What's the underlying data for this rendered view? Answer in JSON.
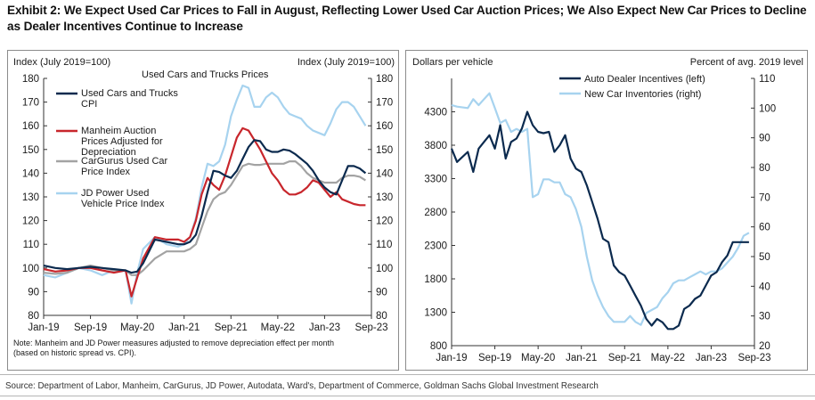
{
  "title": "Exhibit 2: We Expect Used Car Prices to Fall in August, Reflecting Lower Used Car Auction Prices; We Also Expect New Car Prices to Decline as Dealer Incentives Continue to Increase",
  "source": "Source: Department of Labor, Manheim, CarGurus, JD Power, Autodata, Ward's, Department of Commerce, Goldman Sachs Global Investment Research",
  "colors": {
    "navy": "#0b2a4e",
    "red": "#c8262c",
    "gray": "#a3a3a3",
    "lightblue": "#a7d3ef"
  },
  "chart_data": [
    {
      "type": "line",
      "title": "Used Cars and Trucks Prices",
      "ylabel_left": "Index (July 2019=100)",
      "ylabel_right": "Index (July 2019=100)",
      "x_tick_labels": [
        "Jan-19",
        "Sep-19",
        "May-20",
        "Jan-21",
        "Sep-21",
        "May-22",
        "Jan-23",
        "Sep-23"
      ],
      "xlim": [
        "2019-01",
        "2023-09"
      ],
      "ylim": [
        80,
        180
      ],
      "yticks": [
        80,
        90,
        100,
        110,
        120,
        130,
        140,
        150,
        160,
        170,
        180
      ],
      "note": [
        "Note: Manheim and JD Power measures adjusted to remove depreciation effect per month",
        "(based on historic spread vs. CPI)."
      ],
      "series": [
        {
          "name": "Used Cars and Trucks CPI",
          "legend": [
            "Used Cars and Trucks",
            "CPI"
          ],
          "color": "#0b2a4e",
          "x": [
            "2019-01",
            "2019-03",
            "2019-05",
            "2019-07",
            "2019-09",
            "2019-11",
            "2020-01",
            "2020-03",
            "2020-04",
            "2020-05",
            "2020-06",
            "2020-08",
            "2020-10",
            "2020-12",
            "2021-01",
            "2021-02",
            "2021-03",
            "2021-04",
            "2021-05",
            "2021-06",
            "2021-07",
            "2021-08",
            "2021-09",
            "2021-10",
            "2021-11",
            "2021-12",
            "2022-01",
            "2022-02",
            "2022-03",
            "2022-04",
            "2022-05",
            "2022-06",
            "2022-07",
            "2022-08",
            "2022-09",
            "2022-10",
            "2022-11",
            "2022-12",
            "2023-01",
            "2023-02",
            "2023-03",
            "2023-04",
            "2023-05",
            "2023-06",
            "2023-07",
            "2023-08"
          ],
          "y": [
            101,
            100,
            99.5,
            100,
            100.5,
            100,
            99.5,
            99,
            98,
            98.5,
            102,
            112,
            111,
            110,
            110,
            111,
            114,
            122,
            132,
            141,
            140.5,
            139,
            138,
            141,
            146,
            151,
            154,
            153.5,
            150,
            149,
            149,
            150,
            149.5,
            148,
            146,
            144,
            141,
            137,
            134,
            132,
            131,
            137,
            143,
            143,
            142,
            140
          ]
        },
        {
          "name": "Manheim Auction Prices Adjusted for Depreciation",
          "legend": [
            "Manheim Auction",
            "Prices Adjusted for",
            "Depreciation"
          ],
          "color": "#c8262c",
          "x": [
            "2019-01",
            "2019-03",
            "2019-05",
            "2019-07",
            "2019-09",
            "2019-11",
            "2020-01",
            "2020-03",
            "2020-04",
            "2020-05",
            "2020-06",
            "2020-08",
            "2020-10",
            "2020-12",
            "2021-01",
            "2021-02",
            "2021-03",
            "2021-04",
            "2021-05",
            "2021-06",
            "2021-07",
            "2021-08",
            "2021-09",
            "2021-10",
            "2021-11",
            "2021-12",
            "2022-01",
            "2022-02",
            "2022-03",
            "2022-04",
            "2022-05",
            "2022-06",
            "2022-07",
            "2022-08",
            "2022-09",
            "2022-10",
            "2022-11",
            "2022-12",
            "2023-01",
            "2023-02",
            "2023-03",
            "2023-04",
            "2023-05",
            "2023-06",
            "2023-07",
            "2023-08"
          ],
          "y": [
            99.5,
            98.5,
            99,
            100,
            100,
            99,
            98,
            99,
            88,
            96,
            104,
            113,
            112,
            112,
            111,
            113,
            120,
            131,
            138,
            135,
            133,
            139,
            147,
            155,
            159,
            158,
            154,
            150,
            145,
            140,
            137,
            133,
            131,
            131,
            132,
            134,
            137,
            136,
            133,
            130,
            132,
            129,
            128,
            127,
            126.5,
            126.5
          ]
        },
        {
          "name": "CarGurus Used Car Price Index",
          "legend": [
            "CarGurus Used Car",
            "Price Index"
          ],
          "color": "#a3a3a3",
          "x": [
            "2019-01",
            "2019-03",
            "2019-05",
            "2019-07",
            "2019-09",
            "2019-11",
            "2020-01",
            "2020-03",
            "2020-04",
            "2020-05",
            "2020-06",
            "2020-08",
            "2020-10",
            "2020-12",
            "2021-01",
            "2021-02",
            "2021-03",
            "2021-04",
            "2021-05",
            "2021-06",
            "2021-07",
            "2021-08",
            "2021-09",
            "2021-10",
            "2021-11",
            "2021-12",
            "2022-01",
            "2022-02",
            "2022-03",
            "2022-04",
            "2022-05",
            "2022-06",
            "2022-07",
            "2022-08",
            "2022-09",
            "2022-10",
            "2022-11",
            "2022-12",
            "2023-01",
            "2023-02",
            "2023-03",
            "2023-04",
            "2023-05",
            "2023-06",
            "2023-07",
            "2023-08"
          ],
          "y": [
            98,
            97.5,
            98,
            100,
            101,
            100,
            99,
            99,
            97,
            97,
            99,
            104,
            107,
            107,
            107,
            108,
            110,
            117,
            124,
            129,
            131,
            132,
            135,
            139,
            143,
            144,
            143.5,
            143.5,
            144,
            144,
            144,
            144,
            145,
            145,
            143,
            140,
            138,
            137,
            136,
            136,
            136,
            138,
            139,
            139,
            138.5,
            137
          ]
        },
        {
          "name": "JD Power Used Vehicle Price Index",
          "legend": [
            "JD Power Used",
            "Vehicle Price Index"
          ],
          "color": "#a7d3ef",
          "x": [
            "2019-01",
            "2019-03",
            "2019-05",
            "2019-07",
            "2019-09",
            "2019-11",
            "2020-01",
            "2020-03",
            "2020-04",
            "2020-05",
            "2020-06",
            "2020-08",
            "2020-10",
            "2020-12",
            "2021-01",
            "2021-02",
            "2021-03",
            "2021-04",
            "2021-05",
            "2021-06",
            "2021-07",
            "2021-08",
            "2021-09",
            "2021-10",
            "2021-11",
            "2021-12",
            "2022-01",
            "2022-02",
            "2022-03",
            "2022-04",
            "2022-05",
            "2022-06",
            "2022-07",
            "2022-08",
            "2022-09",
            "2022-10",
            "2022-11",
            "2022-12",
            "2023-01",
            "2023-02",
            "2023-03",
            "2023-04",
            "2023-05",
            "2023-06",
            "2023-07",
            "2023-08"
          ],
          "y": [
            97,
            96,
            98,
            100,
            99,
            97,
            99,
            99,
            85,
            98,
            108,
            113,
            110,
            109,
            110,
            113,
            121,
            134,
            144,
            143,
            145,
            152,
            164,
            171,
            177,
            176,
            168,
            168,
            172,
            174,
            172,
            168,
            165,
            164,
            163,
            160,
            158,
            157,
            156,
            161,
            167,
            170,
            170,
            168,
            164,
            160
          ]
        }
      ]
    },
    {
      "type": "line",
      "ylabel_left": "Dollars per vehicle",
      "ylabel_right": "Percent of avg. 2019 level",
      "x_tick_labels": [
        "Jan-19",
        "Sep-19",
        "May-20",
        "Jan-21",
        "Sep-21",
        "May-22",
        "Jan-23",
        "Sep-23"
      ],
      "xlim": [
        "2019-01",
        "2023-09"
      ],
      "ylim_left": [
        800,
        4800
      ],
      "yticks_left": [
        800,
        1300,
        1800,
        2300,
        2800,
        3300,
        3800,
        4300
      ],
      "ylim_right": [
        20,
        110
      ],
      "yticks_right": [
        20,
        30,
        40,
        50,
        60,
        70,
        80,
        90,
        100,
        110
      ],
      "series": [
        {
          "name": "Auto Dealer Incentives (left)",
          "axis": "left",
          "color": "#0b2a4e",
          "x": [
            "2019-01",
            "2019-02",
            "2019-04",
            "2019-05",
            "2019-06",
            "2019-07",
            "2019-08",
            "2019-09",
            "2019-10",
            "2019-11",
            "2019-12",
            "2020-01",
            "2020-02",
            "2020-03",
            "2020-04",
            "2020-05",
            "2020-06",
            "2020-07",
            "2020-08",
            "2020-09",
            "2020-10",
            "2020-11",
            "2020-12",
            "2021-01",
            "2021-02",
            "2021-03",
            "2021-04",
            "2021-05",
            "2021-06",
            "2021-07",
            "2021-08",
            "2021-09",
            "2021-10",
            "2021-11",
            "2021-12",
            "2022-01",
            "2022-02",
            "2022-03",
            "2022-04",
            "2022-05",
            "2022-06",
            "2022-07",
            "2022-08",
            "2022-09",
            "2022-10",
            "2022-11",
            "2022-12",
            "2023-01",
            "2023-02",
            "2023-03",
            "2023-04",
            "2023-05",
            "2023-06",
            "2023-07",
            "2023-08"
          ],
          "y": [
            3750,
            3550,
            3700,
            3400,
            3750,
            3850,
            3950,
            3750,
            4100,
            3600,
            3850,
            3900,
            4050,
            4300,
            4100,
            4000,
            3980,
            4000,
            3700,
            3800,
            3950,
            3600,
            3450,
            3400,
            3200,
            2950,
            2700,
            2400,
            2350,
            2000,
            1900,
            1850,
            1700,
            1550,
            1400,
            1200,
            1100,
            1200,
            1150,
            1050,
            1050,
            1100,
            1350,
            1400,
            1500,
            1550,
            1700,
            1850,
            1900,
            2050,
            2150,
            2350,
            2350,
            2350,
            2350
          ]
        },
        {
          "name": "New Car Inventories (right)",
          "axis": "right",
          "color": "#a7d3ef",
          "x": [
            "2019-01",
            "2019-02",
            "2019-04",
            "2019-05",
            "2019-06",
            "2019-07",
            "2019-08",
            "2019-09",
            "2019-10",
            "2019-11",
            "2019-12",
            "2020-01",
            "2020-02",
            "2020-03",
            "2020-04",
            "2020-05",
            "2020-06",
            "2020-07",
            "2020-08",
            "2020-09",
            "2020-10",
            "2020-11",
            "2020-12",
            "2021-01",
            "2021-02",
            "2021-03",
            "2021-04",
            "2021-05",
            "2021-06",
            "2021-07",
            "2021-08",
            "2021-09",
            "2021-10",
            "2021-11",
            "2021-12",
            "2022-01",
            "2022-02",
            "2022-03",
            "2022-04",
            "2022-05",
            "2022-06",
            "2022-07",
            "2022-08",
            "2022-09",
            "2022-10",
            "2022-11",
            "2022-12",
            "2023-01",
            "2023-02",
            "2023-03",
            "2023-04",
            "2023-05",
            "2023-06",
            "2023-07",
            "2023-08"
          ],
          "y": [
            101,
            100.5,
            100,
            103,
            101,
            103,
            105,
            100,
            95,
            96,
            92,
            93,
            92,
            93,
            70,
            71,
            76,
            76,
            75,
            75,
            71,
            70,
            66,
            60,
            50,
            42,
            37,
            33,
            30,
            28,
            28,
            28,
            30,
            28,
            27,
            31,
            32,
            33,
            36,
            38,
            41,
            42,
            42,
            43,
            44,
            45,
            44,
            45,
            45,
            46,
            48,
            50,
            53,
            57,
            58
          ]
        }
      ]
    }
  ]
}
